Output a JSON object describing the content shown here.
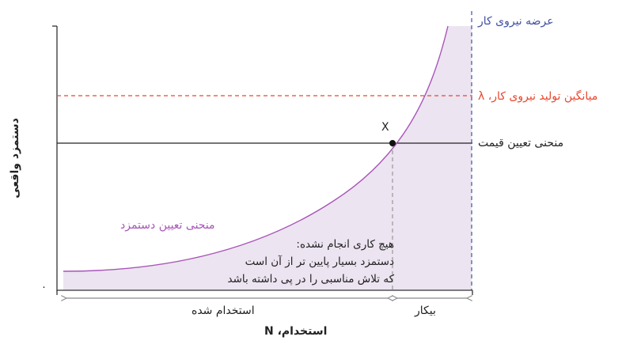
{
  "labels": {
    "labor_supply": "عرضه نیروی کار",
    "avg_product": "میانگین تولید نیروی کار، λ",
    "price_curve": "منحنی تعیین قیمت",
    "wage_curve": "منحنی تعیین دستمزد",
    "point_x": "X",
    "origin": "۰",
    "y_axis": "دستمزد واقعی",
    "x_axis": "استخدام، N",
    "employed": "استخدام شده",
    "unemployed": "بیکار"
  },
  "note": {
    "line1": "هیچ کاری انجام نشده:",
    "line2": "دستمزد بسیار پایین تر از آن است",
    "line3": "که تلاش مناسبی را در پی داشته باشد"
  },
  "colors": {
    "supply_line": "#3f51a3",
    "avg_product_line": "#e8472f",
    "wage_curve": "#a855b8",
    "shade": "#ece4f1",
    "axis": "#333333",
    "arrow": "#8a8a8a"
  }
}
